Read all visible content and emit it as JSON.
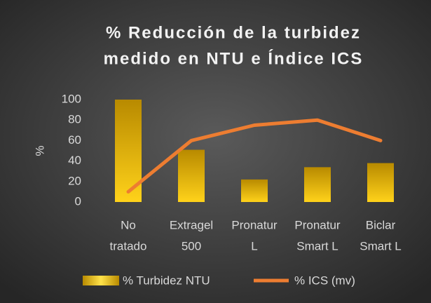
{
  "chart_data": {
    "type": "bar_line",
    "title": [
      "% Reducción de la turbidez",
      "medido en NTU e Índice ICS"
    ],
    "y_label": "%",
    "categories": [
      [
        "No",
        "tratado"
      ],
      [
        "Extragel",
        "500"
      ],
      [
        "Pronatur",
        "L"
      ],
      [
        "Pronatur",
        "Smart L"
      ],
      [
        "Biclar",
        "Smart L"
      ]
    ],
    "series": [
      {
        "name": "% Turbidez NTU",
        "type": "bar",
        "color": "#ffd21a",
        "values": [
          100,
          51,
          22,
          34,
          38
        ]
      },
      {
        "name": "% ICS (mv)",
        "type": "line",
        "color": "#ed7d31",
        "values": [
          10,
          60,
          75,
          80,
          60
        ]
      }
    ],
    "ylim": [
      0,
      100
    ],
    "yticks": [
      0,
      20,
      40,
      60,
      80,
      100
    ],
    "grid": false
  }
}
